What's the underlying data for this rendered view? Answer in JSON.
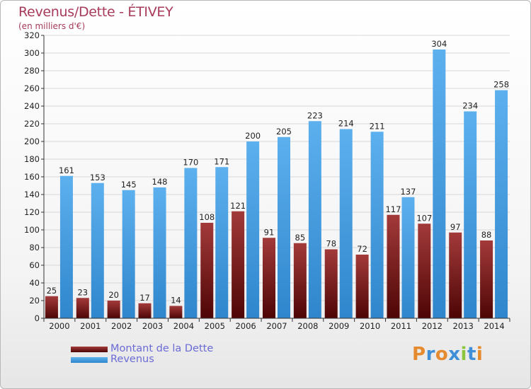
{
  "header": {
    "title": "Revenus/Dette - ÉTIVEY",
    "subtitle": "(en milliers d'€)"
  },
  "legend": {
    "items": [
      {
        "label": "Montant de la Dette",
        "color": "#6e1414"
      },
      {
        "label": "Revenus",
        "color": "#4aa3e6"
      }
    ]
  },
  "logo": {
    "text": "Proxiti"
  },
  "chart_data": {
    "type": "bar",
    "title": "Revenus/Dette - ÉTIVEY",
    "subtitle": "(en milliers d'€)",
    "categories": [
      "2000",
      "2001",
      "2002",
      "2003",
      "2004",
      "2005",
      "2006",
      "2007",
      "2008",
      "2009",
      "2010",
      "2011",
      "2012",
      "2013",
      "2014"
    ],
    "series": [
      {
        "name": "Montant de la Dette",
        "color": "#6e1414",
        "values": [
          25,
          23,
          20,
          17,
          14,
          108,
          121,
          91,
          85,
          78,
          72,
          117,
          107,
          97,
          88
        ]
      },
      {
        "name": "Revenus",
        "color": "#4aa3e6",
        "values": [
          161,
          153,
          145,
          148,
          170,
          171,
          200,
          205,
          223,
          214,
          211,
          137,
          304,
          234,
          258
        ]
      }
    ],
    "ylim": [
      0,
      320
    ],
    "yticks": [
      0,
      20,
      40,
      60,
      80,
      100,
      120,
      140,
      160,
      180,
      200,
      220,
      240,
      260,
      280,
      300,
      320
    ],
    "grid": true,
    "legend_position": "bottom-left"
  }
}
